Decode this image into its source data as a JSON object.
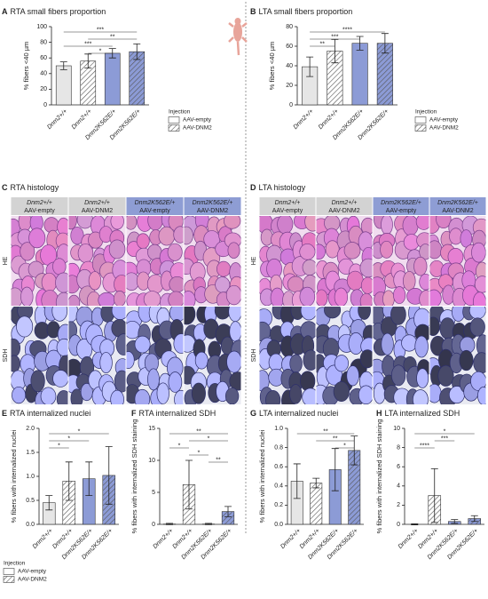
{
  "chart_data": [
    {
      "type": "bar",
      "panel": "A",
      "title": "RTA small fibers proportion",
      "ylabel": "% fibers <40 µm",
      "categories": [
        "Dnm2+/+",
        "Dnm2+/+",
        "Dnm2K562E/+",
        "Dnm2K562E/+"
      ],
      "values": [
        50,
        56,
        66,
        68
      ],
      "errors": [
        5,
        9,
        6,
        10
      ],
      "colors": [
        "#e6e6e6",
        "#ffffff",
        "#8c9bd6",
        "#8c9bd6"
      ],
      "hatch": [
        false,
        true,
        false,
        true
      ],
      "ylim": [
        0,
        100
      ],
      "yticks": [
        0,
        20,
        40,
        60,
        80,
        100
      ],
      "significance": [
        {
          "label": "***",
          "groups": [
            0,
            3
          ]
        },
        {
          "label": "**",
          "groups": [
            1,
            3
          ]
        },
        {
          "label": "***",
          "groups": [
            0,
            2
          ]
        },
        {
          "label": "*",
          "groups": [
            1,
            2
          ]
        }
      ],
      "legend": {
        "title": "Injection",
        "entries": [
          "AAV-empty",
          "AAV-DNM2"
        ]
      }
    },
    {
      "type": "bar",
      "panel": "B",
      "title": "LTA small fibers proportion",
      "ylabel": "% fibers <40 µm",
      "categories": [
        "Dnm2+/+",
        "Dnm2+/+",
        "Dnm2K562E/+",
        "Dnm2K562E/+"
      ],
      "values": [
        39,
        55,
        63,
        63
      ],
      "errors": [
        10,
        12,
        7,
        10
      ],
      "colors": [
        "#e6e6e6",
        "#ffffff",
        "#8c9bd6",
        "#8c9bd6"
      ],
      "hatch": [
        false,
        true,
        false,
        true
      ],
      "ylim": [
        0,
        80
      ],
      "yticks": [
        0,
        20,
        40,
        60,
        80
      ],
      "significance": [
        {
          "label": "****",
          "groups": [
            0,
            3
          ]
        },
        {
          "label": "***",
          "groups": [
            0,
            2
          ]
        },
        {
          "label": "**",
          "groups": [
            0,
            1
          ]
        }
      ],
      "legend": {
        "title": "Injection",
        "entries": [
          "AAV-empty",
          "AAV-DNM2"
        ]
      }
    },
    {
      "type": "bar",
      "panel": "E",
      "title": "RTA internalized nuclei",
      "ylabel": "% fibers with internalized nuclei",
      "categories": [
        "Dnm2+/+",
        "Dnm2+/+",
        "Dnm2K562E/+",
        "Dnm2K562E/+"
      ],
      "values": [
        0.45,
        0.9,
        0.95,
        1.02
      ],
      "errors": [
        0.15,
        0.4,
        0.35,
        0.6
      ],
      "colors": [
        "#e6e6e6",
        "#ffffff",
        "#8c9bd6",
        "#8c9bd6"
      ],
      "hatch": [
        false,
        true,
        false,
        true
      ],
      "ylim": [
        0,
        2
      ],
      "yticks": [
        {
          "value": 0,
          "label": "0.0"
        },
        0.5,
        {
          "value": 1,
          "label": "1.0"
        },
        1.5,
        {
          "value": 2,
          "label": "2.0"
        }
      ],
      "significance": [
        {
          "label": "*",
          "groups": [
            0,
            3
          ]
        },
        {
          "label": "*",
          "groups": [
            0,
            2
          ]
        },
        {
          "label": "*",
          "groups": [
            0,
            1
          ]
        }
      ]
    },
    {
      "type": "bar",
      "panel": "F",
      "title": "RTA internalized SDH",
      "ylabel": "% fibers with internalized SDH staining",
      "categories": [
        "Dnm2+/+",
        "Dnm2+/+",
        "Dnm2K562E/+",
        "Dnm2K562E/+"
      ],
      "values": [
        0.05,
        6.2,
        0.05,
        2.0
      ],
      "errors": [
        0.1,
        3.8,
        0.1,
        0.8
      ],
      "colors": [
        "#e6e6e6",
        "#ffffff",
        "#8c9bd6",
        "#8c9bd6"
      ],
      "hatch": [
        false,
        true,
        false,
        true
      ],
      "ylim": [
        0,
        15
      ],
      "yticks": [
        0,
        5,
        10,
        15
      ],
      "significance": [
        {
          "label": "**",
          "groups": [
            0,
            3
          ]
        },
        {
          "label": "*",
          "groups": [
            1,
            3
          ]
        },
        {
          "label": "*",
          "groups": [
            0,
            1
          ]
        },
        {
          "label": "*",
          "groups": [
            1,
            2
          ]
        },
        {
          "label": "**",
          "groups": [
            2,
            3
          ]
        }
      ]
    },
    {
      "type": "bar",
      "panel": "G",
      "title": "LTA internalized nuclei",
      "ylabel": "% fibers with internalized nuclei",
      "categories": [
        "Dnm2+/+",
        "Dnm2+/+",
        "Dnm2K562E/+",
        "Dnm2K562E/+"
      ],
      "values": [
        0.45,
        0.43,
        0.57,
        0.77
      ],
      "errors": [
        0.18,
        0.05,
        0.22,
        0.15
      ],
      "colors": [
        "#e6e6e6",
        "#ffffff",
        "#8c9bd6",
        "#8c9bd6"
      ],
      "hatch": [
        false,
        true,
        false,
        true
      ],
      "ylim": [
        0,
        1
      ],
      "yticks": [
        {
          "value": 0,
          "label": "0.0"
        },
        0.2,
        0.4,
        0.6,
        0.8,
        {
          "value": 1,
          "label": "1.0"
        }
      ],
      "significance": [
        {
          "label": "**",
          "groups": [
            0,
            3
          ]
        },
        {
          "label": "**",
          "groups": [
            1,
            3
          ]
        },
        {
          "label": "*",
          "groups": [
            2,
            3
          ]
        }
      ]
    },
    {
      "type": "bar",
      "panel": "H",
      "title": "LTA internalized SDH",
      "ylabel": "% fibers with internalized SDH staining",
      "categories": [
        "Dnm2+/+",
        "Dnm2+/+",
        "Dnm2K562E/+",
        "Dnm2K562E/+"
      ],
      "values": [
        0,
        3.0,
        0.3,
        0.6
      ],
      "errors": [
        0.05,
        2.8,
        0.2,
        0.3
      ],
      "colors": [
        "#e6e6e6",
        "#ffffff",
        "#8c9bd6",
        "#8c9bd6"
      ],
      "hatch": [
        false,
        true,
        false,
        true
      ],
      "ylim": [
        0,
        10
      ],
      "yticks": [
        0,
        2,
        4,
        6,
        8,
        10
      ],
      "significance": [
        {
          "label": "*",
          "groups": [
            0,
            3
          ]
        },
        {
          "label": "***",
          "groups": [
            1,
            2
          ]
        },
        {
          "label": "****",
          "groups": [
            0,
            1
          ]
        }
      ]
    }
  ],
  "histology": [
    {
      "panel": "C",
      "title": "RTA histology",
      "rows": [
        "HE",
        "SDH"
      ],
      "columns": [
        {
          "genotype": "Dnm2+/+",
          "injection": "AAV-empty"
        },
        {
          "genotype": "Dnm2+/+",
          "injection": "AAV-DNM2"
        },
        {
          "genotype": "Dnm2K562E/+",
          "injection": "AAV-empty"
        },
        {
          "genotype": "Dnm2K562E/+",
          "injection": "AAV-DNM2"
        }
      ]
    },
    {
      "panel": "D",
      "title": "LTA histology",
      "rows": [
        "HE",
        "SDH"
      ],
      "columns": [
        {
          "genotype": "Dnm2+/+",
          "injection": "AAV-empty"
        },
        {
          "genotype": "Dnm2+/+",
          "injection": "AAV-DNM2"
        },
        {
          "genotype": "Dnm2K562E/+",
          "injection": "AAV-empty"
        },
        {
          "genotype": "Dnm2K562E/+",
          "injection": "AAV-DNM2"
        }
      ]
    }
  ],
  "legend": {
    "title": "Injection",
    "entries": [
      "AAV-empty",
      "AAV-DNM2"
    ]
  }
}
